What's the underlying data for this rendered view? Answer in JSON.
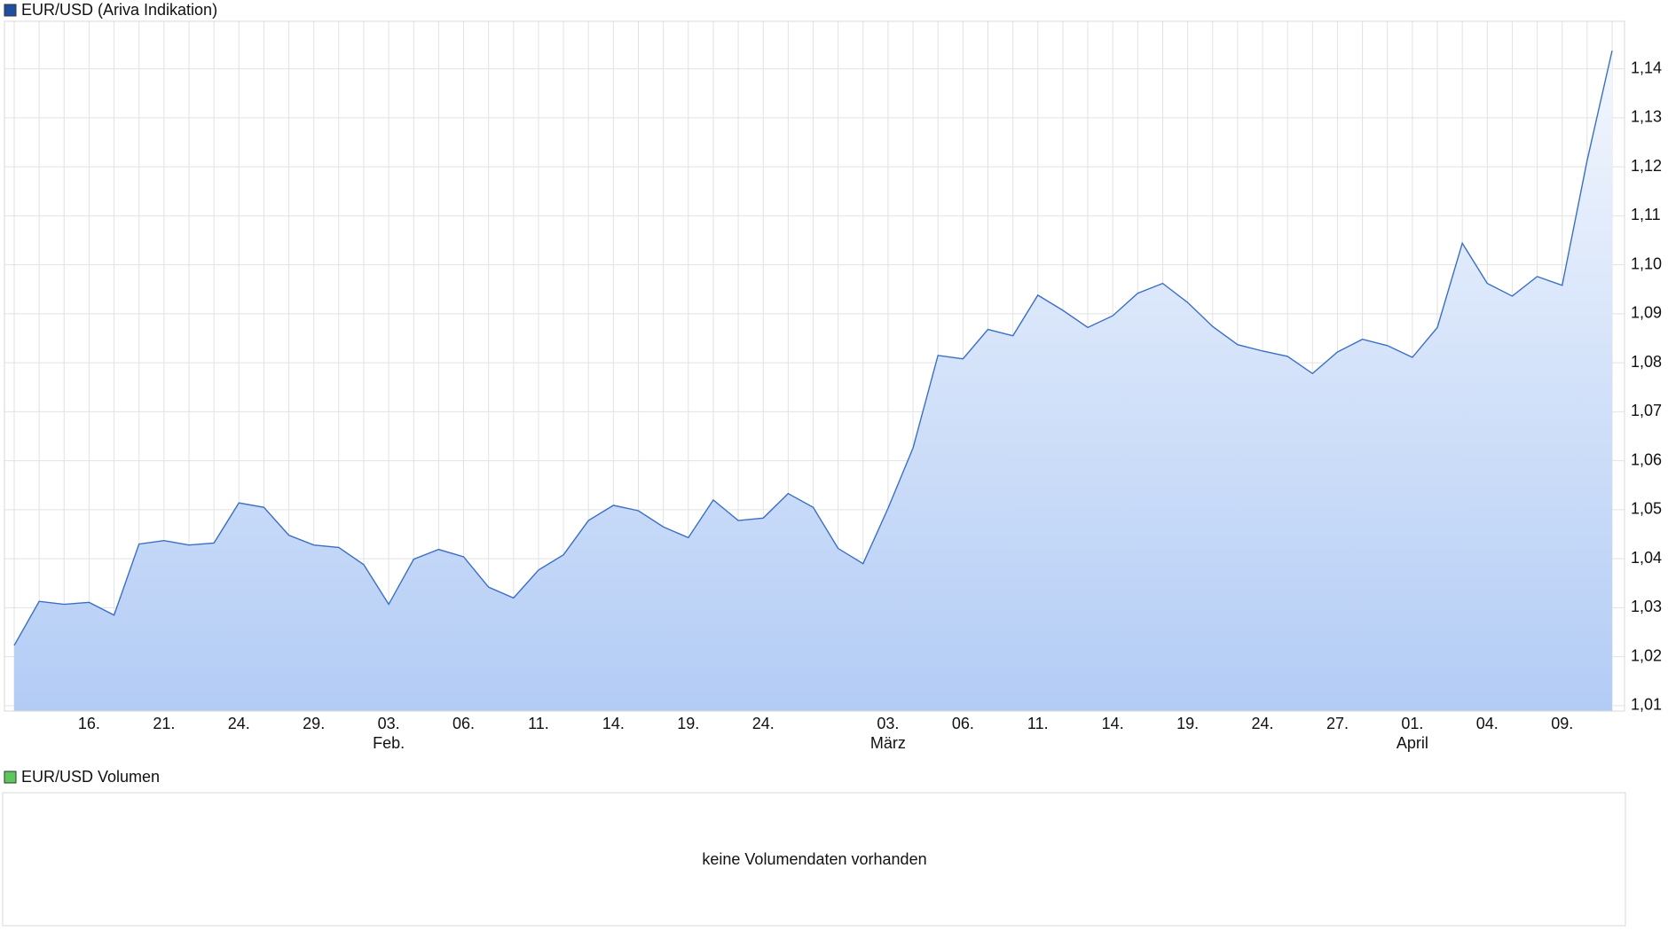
{
  "chart_data": {
    "type": "area",
    "title": "EUR/USD (Ariva Indikation)",
    "color": "#1f4fa3",
    "line_color": "#3a6fc4",
    "grid": true,
    "categories": [
      null,
      null,
      null,
      "16.",
      null,
      null,
      "21.",
      null,
      null,
      "24.",
      null,
      null,
      "29.",
      null,
      null,
      "03.",
      null,
      null,
      "06.",
      null,
      null,
      "11.",
      null,
      null,
      "14.",
      null,
      null,
      "19.",
      null,
      null,
      "24.",
      null,
      null,
      null,
      null,
      "03.",
      null,
      null,
      "06.",
      null,
      null,
      "11.",
      null,
      null,
      "14.",
      null,
      null,
      "19.",
      null,
      null,
      "24.",
      null,
      null,
      "27.",
      null,
      null,
      "01.",
      null,
      null,
      "04.",
      null,
      null,
      "09.",
      null,
      null
    ],
    "months": [
      null,
      null,
      null,
      null,
      null,
      null,
      null,
      null,
      null,
      null,
      null,
      null,
      null,
      null,
      null,
      "Feb.",
      null,
      null,
      null,
      null,
      null,
      null,
      null,
      null,
      null,
      null,
      null,
      null,
      null,
      null,
      null,
      null,
      null,
      null,
      null,
      "März",
      null,
      null,
      null,
      null,
      null,
      null,
      null,
      null,
      null,
      null,
      null,
      null,
      null,
      null,
      null,
      null,
      null,
      null,
      null,
      null,
      "April",
      null,
      null,
      null,
      null,
      null,
      null,
      null,
      null
    ],
    "values": [
      1.0223,
      1.0313,
      1.0307,
      1.0311,
      1.0285,
      1.043,
      1.0437,
      1.0428,
      1.0432,
      1.0514,
      1.0505,
      1.0448,
      1.0428,
      1.0423,
      1.0388,
      1.0307,
      1.0399,
      1.0419,
      1.0404,
      1.0342,
      1.032,
      1.0377,
      1.0408,
      1.0478,
      1.0509,
      1.0498,
      1.0465,
      1.0443,
      1.052,
      1.0478,
      1.0483,
      1.0533,
      1.0505,
      1.0421,
      1.039,
      1.0503,
      1.0626,
      1.0815,
      1.0808,
      1.0868,
      1.0855,
      1.0938,
      1.0907,
      1.0872,
      1.0896,
      1.0942,
      1.0962,
      1.0923,
      1.0874,
      1.0837,
      1.0824,
      1.0813,
      1.0778,
      1.0822,
      1.0848,
      1.0835,
      1.0811,
      1.0872,
      1.1044,
      1.0962,
      1.0936,
      1.0976,
      1.0958,
      1.1213,
      1.1437
    ],
    "ylim": [
      1.0089,
      1.1497
    ],
    "yticks": [
      {
        "value": 1.01,
        "label": "1,01"
      },
      {
        "value": 1.02,
        "label": "1,02"
      },
      {
        "value": 1.03,
        "label": "1,03"
      },
      {
        "value": 1.04,
        "label": "1,04"
      },
      {
        "value": 1.05,
        "label": "1,05"
      },
      {
        "value": 1.06,
        "label": "1,06"
      },
      {
        "value": 1.07,
        "label": "1,07"
      },
      {
        "value": 1.08,
        "label": "1,08"
      },
      {
        "value": 1.09,
        "label": "1,09"
      },
      {
        "value": 1.1,
        "label": "1,10"
      },
      {
        "value": 1.11,
        "label": "1,11"
      },
      {
        "value": 1.12,
        "label": "1,12"
      },
      {
        "value": 1.13,
        "label": "1,13"
      },
      {
        "value": 1.14,
        "label": "1,14"
      }
    ],
    "volume": {
      "title": "EUR/USD Volumen",
      "color": "#5cc85c",
      "message": "keine Volumendaten vorhanden"
    }
  }
}
